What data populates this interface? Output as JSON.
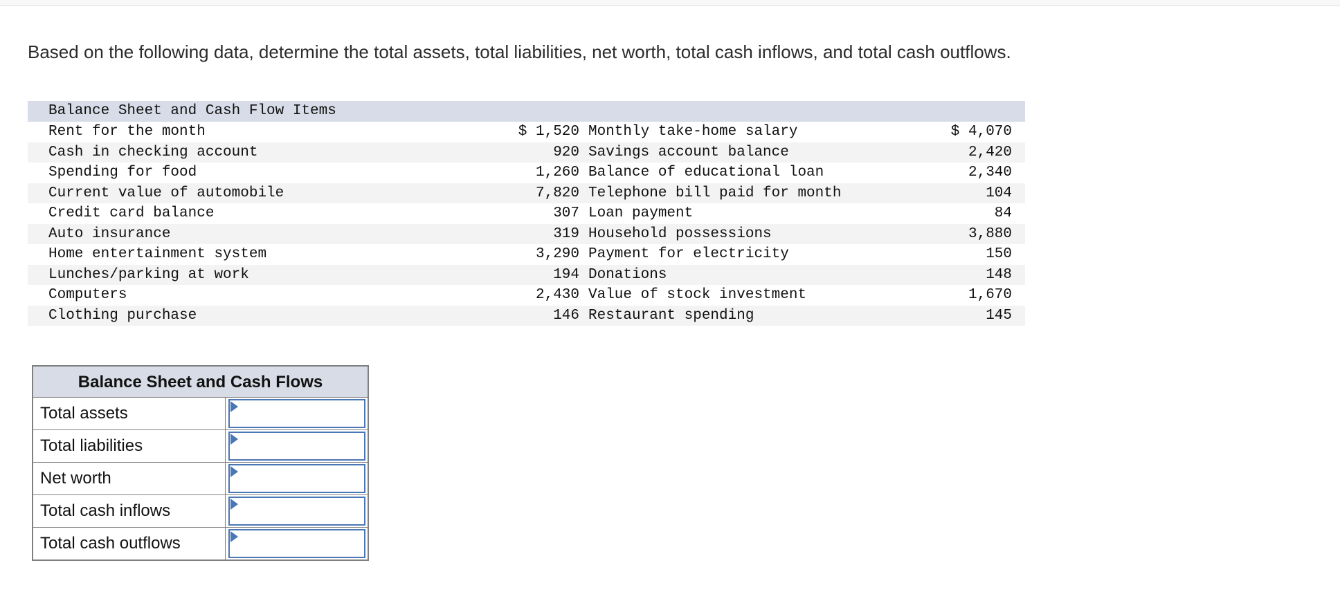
{
  "page": {
    "instruction": "Based on the following data, determine the total assets, total liabilities, net worth, total cash inflows, and total cash outflows."
  },
  "colors": {
    "header_band": "#d8dce8",
    "row_stripe": "#f3f3f3",
    "input_border_blue": "#4a76b5",
    "table_border_gray": "#7f7f7f"
  },
  "data_table": {
    "title": "Balance Sheet and Cash Flow Items",
    "rows": [
      {
        "item1": "Rent for the month",
        "value1": "$ 1,520",
        "item2": "Monthly take-home salary",
        "value2": "$ 4,070"
      },
      {
        "item1": "Cash in checking account",
        "value1": "920",
        "item2": "Savings account balance",
        "value2": "2,420"
      },
      {
        "item1": "Spending for food",
        "value1": "1,260",
        "item2": "Balance of educational loan",
        "value2": "2,340"
      },
      {
        "item1": "Current value of automobile",
        "value1": "7,820",
        "item2": "Telephone bill paid for month",
        "value2": "104"
      },
      {
        "item1": "Credit card balance",
        "value1": "307",
        "item2": "Loan payment",
        "value2": "84"
      },
      {
        "item1": "Auto insurance",
        "value1": "319",
        "item2": "Household possessions",
        "value2": "3,880"
      },
      {
        "item1": "Home entertainment system",
        "value1": "3,290",
        "item2": "Payment for electricity",
        "value2": "150"
      },
      {
        "item1": "Lunches/parking at work",
        "value1": "194",
        "item2": "Donations",
        "value2": "148"
      },
      {
        "item1": "Computers",
        "value1": "2,430",
        "item2": "Value of stock investment",
        "value2": "1,670"
      },
      {
        "item1": "Clothing purchase",
        "value1": "146",
        "item2": "Restaurant spending",
        "value2": "145"
      }
    ]
  },
  "answer_table": {
    "title": "Balance Sheet and Cash Flows",
    "rows": [
      {
        "label": "Total assets",
        "value": ""
      },
      {
        "label": "Total liabilities",
        "value": ""
      },
      {
        "label": "Net worth",
        "value": ""
      },
      {
        "label": "Total cash inflows",
        "value": ""
      },
      {
        "label": "Total cash outflows",
        "value": ""
      }
    ]
  }
}
